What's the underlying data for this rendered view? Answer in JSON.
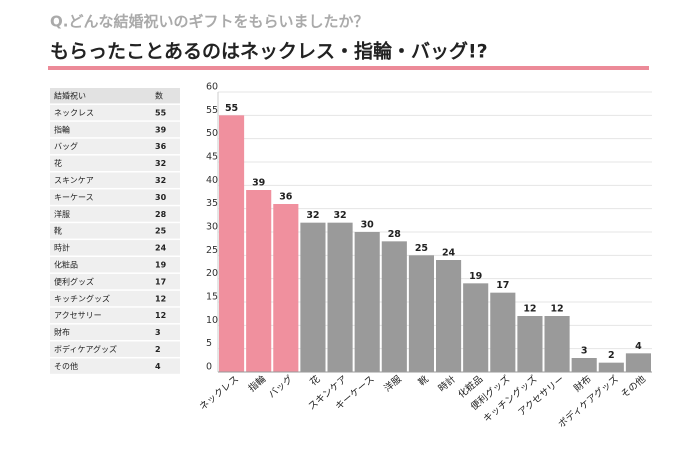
{
  "chart_data": {
    "type": "bar",
    "title": "Q.どんな結婚祝いのギフトをもらいましたか？",
    "subtitle": "もらったことあるのはネックレス・指輪・バッグ!?",
    "table_header": [
      "結婚祝い",
      "数"
    ],
    "categories": [
      "ネックレス",
      "指輪",
      "バッグ",
      "花",
      "スキンケア",
      "キーケース",
      "洋服",
      "靴",
      "時計",
      "化粧品",
      "便利グッズ",
      "キッチングッズ",
      "アクセサリー",
      "財布",
      "ボディケアグッズ",
      "その他"
    ],
    "values": [
      55,
      39,
      36,
      32,
      32,
      30,
      28,
      25,
      24,
      19,
      17,
      12,
      12,
      3,
      2,
      4
    ],
    "colors": [
      "#f0909e",
      "#f0909e",
      "#f0909e",
      "#9a9a9a",
      "#9a9a9a",
      "#9a9a9a",
      "#9a9a9a",
      "#9a9a9a",
      "#9a9a9a",
      "#9a9a9a",
      "#9a9a9a",
      "#9a9a9a",
      "#9a9a9a",
      "#9a9a9a",
      "#9a9a9a",
      "#9a9a9a"
    ],
    "ylim": [
      0,
      60
    ],
    "yticks": [
      0,
      5,
      10,
      15,
      20,
      25,
      30,
      35,
      40,
      45,
      50,
      55,
      60
    ],
    "grid": true
  }
}
